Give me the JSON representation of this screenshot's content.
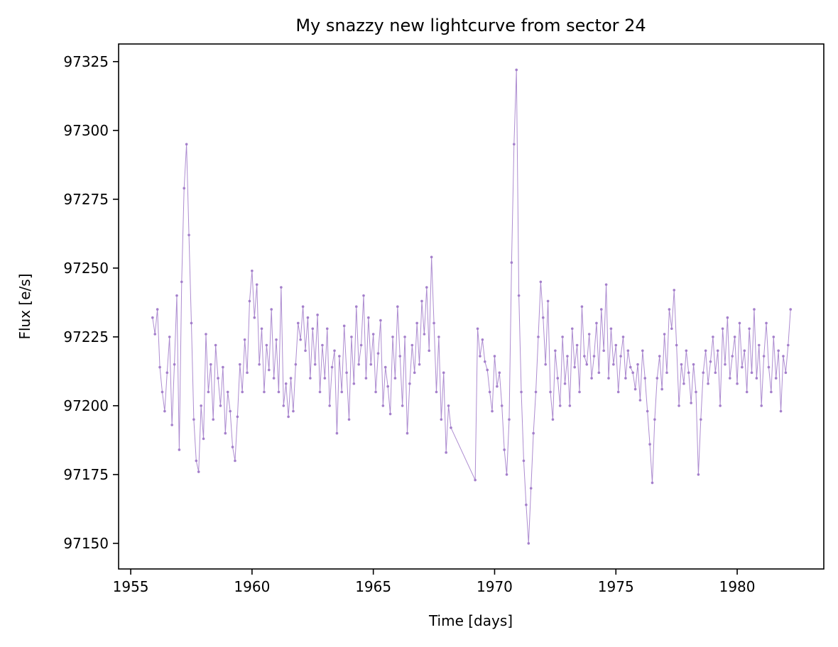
{
  "chart_data": {
    "type": "line",
    "title": "My snazzy new lightcurve from sector 24",
    "x_label": "Time [days]",
    "y_label": "Flux [e/s]",
    "color": "#a47fcb",
    "markers": true,
    "xlim": [
      1954.5,
      1983.57
    ],
    "ylim": [
      97140.7,
      97331.4
    ],
    "xticks": [
      1955,
      1960,
      1965,
      1970,
      1975,
      1980
    ],
    "yticks": [
      97150,
      97175,
      97200,
      97225,
      97250,
      97275,
      97300,
      97325
    ],
    "x": [
      1955.9,
      1956,
      1956.1,
      1956.2,
      1956.3,
      1956.4,
      1956.5,
      1956.6,
      1956.7,
      1956.8,
      1956.9,
      1957,
      1957.1,
      1957.2,
      1957.3,
      1957.4,
      1957.5,
      1957.6,
      1957.7,
      1957.8,
      1957.9,
      1958,
      1958.1,
      1958.2,
      1958.3,
      1958.4,
      1958.5,
      1958.6,
      1958.7,
      1958.8,
      1958.9,
      1959,
      1959.1,
      1959.2,
      1959.3,
      1959.4,
      1959.5,
      1959.6,
      1959.7,
      1959.8,
      1959.9,
      1960,
      1960.1,
      1960.2,
      1960.3,
      1960.4,
      1960.5,
      1960.6,
      1960.7,
      1960.8,
      1960.9,
      1961,
      1961.1,
      1961.2,
      1961.3,
      1961.4,
      1961.5,
      1961.6,
      1961.7,
      1961.8,
      1961.9,
      1962,
      1962.1,
      1962.2,
      1962.3,
      1962.4,
      1962.5,
      1962.6,
      1962.7,
      1962.8,
      1962.9,
      1963,
      1963.1,
      1963.2,
      1963.3,
      1963.4,
      1963.5,
      1963.6,
      1963.7,
      1963.8,
      1963.9,
      1964,
      1964.1,
      1964.2,
      1964.3,
      1964.4,
      1964.5,
      1964.6,
      1964.7,
      1964.8,
      1964.9,
      1965,
      1965.1,
      1965.2,
      1965.3,
      1965.4,
      1965.5,
      1965.6,
      1965.7,
      1965.8,
      1965.9,
      1966,
      1966.1,
      1966.2,
      1966.3,
      1966.4,
      1966.5,
      1966.6,
      1966.7,
      1966.8,
      1966.9,
      1967,
      1967.1,
      1967.2,
      1967.3,
      1967.4,
      1967.5,
      1967.6,
      1967.7,
      1967.8,
      1967.9,
      1968,
      1968.1,
      1968.2,
      1969.2,
      1969.3,
      1969.4,
      1969.5,
      1969.6,
      1969.7,
      1969.8,
      1969.9,
      1970,
      1970.1,
      1970.2,
      1970.3,
      1970.4,
      1970.5,
      1970.6,
      1970.7,
      1970.8,
      1970.9,
      1971,
      1971.1,
      1971.2,
      1971.3,
      1971.4,
      1971.5,
      1971.6,
      1971.7,
      1971.8,
      1971.9,
      1972,
      1972.1,
      1972.2,
      1972.3,
      1972.4,
      1972.5,
      1972.6,
      1972.7,
      1972.8,
      1972.9,
      1973,
      1973.1,
      1973.2,
      1973.3,
      1973.4,
      1973.5,
      1973.6,
      1973.7,
      1973.8,
      1973.9,
      1974,
      1974.1,
      1974.2,
      1974.3,
      1974.4,
      1974.5,
      1974.6,
      1974.7,
      1974.8,
      1974.9,
      1975,
      1975.1,
      1975.2,
      1975.3,
      1975.4,
      1975.5,
      1975.6,
      1975.7,
      1975.8,
      1975.9,
      1976,
      1976.1,
      1976.2,
      1976.3,
      1976.4,
      1976.5,
      1976.6,
      1976.7,
      1976.8,
      1976.9,
      1977,
      1977.1,
      1977.2,
      1977.3,
      1977.4,
      1977.5,
      1977.6,
      1977.7,
      1977.8,
      1977.9,
      1978,
      1978.1,
      1978.2,
      1978.3,
      1978.4,
      1978.5,
      1978.6,
      1978.7,
      1978.8,
      1978.9,
      1979,
      1979.1,
      1979.2,
      1979.3,
      1979.4,
      1979.5,
      1979.6,
      1979.7,
      1979.8,
      1979.9,
      1980,
      1980.1,
      1980.2,
      1980.3,
      1980.4,
      1980.5,
      1980.6,
      1980.7,
      1980.8,
      1980.9,
      1981,
      1981.1,
      1981.2,
      1981.3,
      1981.4,
      1981.5,
      1981.6,
      1981.7,
      1981.8,
      1981.9,
      1982,
      1982.1,
      1982.2
    ],
    "values": [
      97232,
      97226,
      97235,
      97214,
      97205,
      97198,
      97212,
      97225,
      97193,
      97215,
      97240,
      97184,
      97245,
      97279,
      97295,
      97262,
      97230,
      97195,
      97180,
      97176,
      97200,
      97188,
      97226,
      97205,
      97215,
      97195,
      97222,
      97210,
      97200,
      97214,
      97190,
      97205,
      97198,
      97185,
      97180,
      97196,
      97215,
      97205,
      97224,
      97212,
      97238,
      97249,
      97232,
      97244,
      97215,
      97228,
      97205,
      97222,
      97213,
      97235,
      97210,
      97224,
      97205,
      97243,
      97200,
      97208,
      97196,
      97210,
      97198,
      97215,
      97230,
      97224,
      97236,
      97220,
      97232,
      97210,
      97228,
      97215,
      97233,
      97205,
      97222,
      97210,
      97228,
      97200,
      97214,
      97220,
      97190,
      97218,
      97205,
      97229,
      97212,
      97195,
      97225,
      97208,
      97236,
      97215,
      97222,
      97240,
      97210,
      97232,
      97215,
      97226,
      97205,
      97219,
      97231,
      97200,
      97214,
      97207,
      97197,
      97225,
      97210,
      97236,
      97218,
      97200,
      97225,
      97190,
      97208,
      97222,
      97212,
      97230,
      97215,
      97238,
      97226,
      97243,
      97220,
      97254,
      97230,
      97205,
      97225,
      97195,
      97212,
      97183,
      97200,
      97192,
      97173,
      97228,
      97218,
      97224,
      97216,
      97213,
      97205,
      97198,
      97218,
      97207,
      97212,
      97200,
      97184,
      97175,
      97195,
      97252,
      97295,
      97322,
      97240,
      97205,
      97180,
      97164,
      97150,
      97170,
      97190,
      97205,
      97225,
      97245,
      97232,
      97215,
      97238,
      97205,
      97195,
      97220,
      97210,
      97200,
      97225,
      97208,
      97218,
      97200,
      97228,
      97214,
      97222,
      97205,
      97236,
      97218,
      97215,
      97226,
      97210,
      97218,
      97230,
      97212,
      97235,
      97220,
      97244,
      97210,
      97228,
      97215,
      97222,
      97205,
      97218,
      97225,
      97210,
      97220,
      97214,
      97212,
      97206,
      97215,
      97202,
      97220,
      97210,
      97198,
      97186,
      97172,
      97195,
      97210,
      97218,
      97206,
      97226,
      97212,
      97235,
      97228,
      97242,
      97222,
      97200,
      97215,
      97208,
      97220,
      97212,
      97201,
      97215,
      97205,
      97175,
      97195,
      97212,
      97220,
      97208,
      97216,
      97225,
      97212,
      97220,
      97200,
      97228,
      97215,
      97232,
      97210,
      97218,
      97225,
      97208,
      97230,
      97214,
      97220,
      97205,
      97228,
      97212,
      97235,
      97210,
      97222,
      97200,
      97218,
      97230,
      97214,
      97205,
      97225,
      97210,
      97220,
      97198,
      97218,
      97212,
      97222,
      97235
    ]
  }
}
